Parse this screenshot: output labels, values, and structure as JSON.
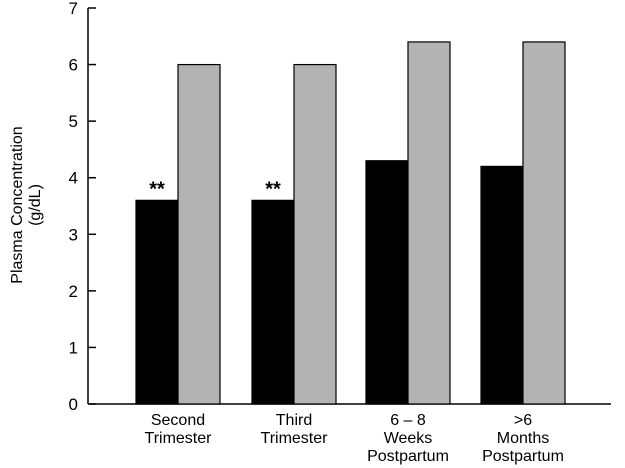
{
  "chart_data": {
    "type": "bar",
    "categories": [
      [
        "Second",
        "Trimester"
      ],
      [
        "Third",
        "Trimester"
      ],
      [
        "6 – 8",
        "Weeks",
        "Postpartum"
      ],
      [
        ">6",
        "Months",
        "Postpartum"
      ]
    ],
    "series": [
      {
        "values": [
          3.6,
          3.6,
          4.3,
          4.2
        ],
        "color": "#000000"
      },
      {
        "values": [
          6.0,
          6.0,
          6.4,
          6.4
        ],
        "color": "#b3b3b3"
      }
    ],
    "annotations": [
      "**",
      "**",
      "",
      ""
    ],
    "ylabel_lines": [
      "Plasma Concentration",
      "(g/dL)"
    ],
    "xlabel": "",
    "title": "",
    "ylim": [
      0,
      7
    ],
    "yticks": [
      0,
      1,
      2,
      3,
      4,
      5,
      6,
      7
    ],
    "grid": false,
    "legend": "none"
  }
}
